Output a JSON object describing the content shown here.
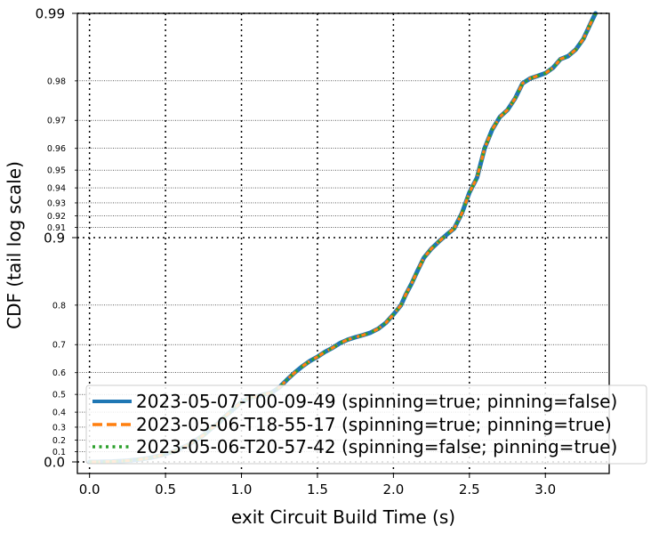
{
  "chart_data": {
    "type": "line",
    "title": "",
    "xlabel": "exit Circuit Build Time (s)",
    "ylabel": "CDF (tail log scale)",
    "xlim": [
      -0.08,
      3.42
    ],
    "x_ticks": [
      {
        "value": 0.0,
        "label": "0.0"
      },
      {
        "value": 0.5,
        "label": "0.5"
      },
      {
        "value": 1.0,
        "label": "1.0"
      },
      {
        "value": 1.5,
        "label": "1.5"
      },
      {
        "value": 2.0,
        "label": "2.0"
      },
      {
        "value": 2.5,
        "label": "2.5"
      },
      {
        "value": 3.0,
        "label": "3.0"
      }
    ],
    "y_scale": "tail-log",
    "y_major_ticks": [
      {
        "value": 0.0,
        "label": "0.0"
      },
      {
        "value": 0.9,
        "label": "0.9"
      },
      {
        "value": 0.99,
        "label": "0.99"
      }
    ],
    "y_minor_ticks": [
      {
        "value": 0.1,
        "label": "0.1"
      },
      {
        "value": 0.2,
        "label": "0.2"
      },
      {
        "value": 0.3,
        "label": "0.3"
      },
      {
        "value": 0.4,
        "label": "0.4"
      },
      {
        "value": 0.5,
        "label": "0.5"
      },
      {
        "value": 0.6,
        "label": "0.6"
      },
      {
        "value": 0.7,
        "label": "0.7"
      },
      {
        "value": 0.8,
        "label": "0.8"
      },
      {
        "value": 0.91,
        "label": "0.91"
      },
      {
        "value": 0.92,
        "label": "0.92"
      },
      {
        "value": 0.93,
        "label": "0.93"
      },
      {
        "value": 0.94,
        "label": "0.94"
      },
      {
        "value": 0.95,
        "label": "0.95"
      },
      {
        "value": 0.96,
        "label": "0.96"
      },
      {
        "value": 0.97,
        "label": "0.97"
      },
      {
        "value": 0.98,
        "label": "0.98"
      }
    ],
    "grid": true,
    "legend_position": "bottom-right",
    "series": [
      {
        "name": "2023-05-07-T00-09-49 (spinning=true; pinning=false)",
        "color": "#1f77b4",
        "style": "solid",
        "x": [
          0.0,
          0.05,
          0.1,
          0.15,
          0.2,
          0.25,
          0.3,
          0.35,
          0.4,
          0.45,
          0.5,
          0.55,
          0.6,
          0.65,
          0.7,
          0.75,
          0.8,
          0.85,
          0.9,
          0.95,
          1.0,
          1.05,
          1.1,
          1.15,
          1.2,
          1.25,
          1.3,
          1.35,
          1.4,
          1.45,
          1.5,
          1.55,
          1.6,
          1.65,
          1.7,
          1.75,
          1.8,
          1.85,
          1.9,
          1.95,
          2.0,
          2.05,
          2.08,
          2.12,
          2.16,
          2.2,
          2.25,
          2.3,
          2.35,
          2.4,
          2.45,
          2.5,
          2.55,
          2.6,
          2.65,
          2.7,
          2.75,
          2.8,
          2.85,
          2.9,
          2.95,
          3.0,
          3.05,
          3.1,
          3.15,
          3.2,
          3.25,
          3.3,
          3.33
        ],
        "y": [
          0.0,
          0.0,
          0.002,
          0.004,
          0.008,
          0.013,
          0.02,
          0.03,
          0.042,
          0.058,
          0.078,
          0.1,
          0.13,
          0.16,
          0.2,
          0.24,
          0.29,
          0.33,
          0.38,
          0.42,
          0.46,
          0.48,
          0.49,
          0.5,
          0.51,
          0.535,
          0.57,
          0.6,
          0.625,
          0.645,
          0.66,
          0.677,
          0.69,
          0.705,
          0.715,
          0.722,
          0.728,
          0.735,
          0.745,
          0.76,
          0.78,
          0.8,
          0.82,
          0.84,
          0.86,
          0.877,
          0.888,
          0.896,
          0.903,
          0.909,
          0.922,
          0.937,
          0.946,
          0.96,
          0.967,
          0.971,
          0.973,
          0.976,
          0.9795,
          0.9805,
          0.981,
          0.9815,
          0.9825,
          0.984,
          0.9845,
          0.9855,
          0.987,
          0.989,
          0.99
        ]
      },
      {
        "name": "2023-05-06-T18-55-17 (spinning=true; pinning=true)",
        "color": "#ff7f0e",
        "style": "dashed",
        "x": [
          0.0,
          0.05,
          0.1,
          0.15,
          0.2,
          0.25,
          0.3,
          0.35,
          0.4,
          0.45,
          0.5,
          0.55,
          0.6,
          0.65,
          0.7,
          0.75,
          0.8,
          0.85,
          0.9,
          0.95,
          1.0,
          1.05,
          1.1,
          1.15,
          1.2,
          1.25,
          1.3,
          1.35,
          1.4,
          1.45,
          1.5,
          1.55,
          1.6,
          1.65,
          1.7,
          1.75,
          1.8,
          1.85,
          1.9,
          1.95,
          2.0,
          2.05,
          2.08,
          2.12,
          2.16,
          2.2,
          2.25,
          2.3,
          2.35,
          2.4,
          2.45,
          2.5,
          2.55,
          2.6,
          2.65,
          2.7,
          2.75,
          2.8,
          2.85,
          2.9,
          2.95,
          3.0,
          3.05,
          3.1,
          3.15,
          3.2,
          3.25,
          3.3,
          3.33
        ],
        "y": [
          0.0,
          0.0,
          0.002,
          0.004,
          0.008,
          0.013,
          0.02,
          0.03,
          0.042,
          0.058,
          0.078,
          0.1,
          0.13,
          0.16,
          0.2,
          0.24,
          0.29,
          0.33,
          0.38,
          0.42,
          0.46,
          0.48,
          0.49,
          0.5,
          0.51,
          0.535,
          0.57,
          0.6,
          0.625,
          0.645,
          0.66,
          0.677,
          0.69,
          0.705,
          0.715,
          0.722,
          0.728,
          0.735,
          0.745,
          0.76,
          0.78,
          0.8,
          0.82,
          0.84,
          0.86,
          0.877,
          0.888,
          0.896,
          0.903,
          0.909,
          0.922,
          0.937,
          0.946,
          0.96,
          0.967,
          0.971,
          0.973,
          0.976,
          0.9795,
          0.9805,
          0.981,
          0.9815,
          0.9825,
          0.984,
          0.9845,
          0.9855,
          0.987,
          0.989,
          0.99
        ]
      },
      {
        "name": "2023-05-06-T20-57-42 (spinning=false; pinning=true)",
        "color": "#2ca02c",
        "style": "dotted",
        "x": [
          0.0,
          0.05,
          0.1,
          0.15,
          0.2,
          0.25,
          0.3,
          0.35,
          0.4,
          0.45,
          0.5,
          0.55,
          0.6,
          0.65,
          0.7,
          0.75,
          0.8,
          0.85,
          0.9,
          0.95,
          1.0,
          1.05,
          1.1,
          1.15,
          1.2,
          1.25,
          1.3,
          1.35,
          1.4,
          1.45,
          1.5,
          1.55,
          1.6,
          1.65,
          1.7,
          1.75,
          1.8,
          1.85,
          1.9,
          1.95,
          2.0,
          2.05,
          2.08,
          2.12,
          2.16,
          2.2,
          2.25,
          2.3,
          2.35,
          2.4,
          2.45,
          2.5,
          2.55,
          2.6,
          2.65,
          2.7,
          2.75,
          2.8,
          2.85,
          2.9,
          2.95,
          3.0,
          3.05,
          3.1,
          3.15,
          3.2,
          3.25,
          3.3,
          3.33
        ],
        "y": [
          0.0,
          0.0,
          0.002,
          0.004,
          0.008,
          0.013,
          0.02,
          0.03,
          0.042,
          0.058,
          0.078,
          0.1,
          0.13,
          0.16,
          0.2,
          0.24,
          0.29,
          0.33,
          0.38,
          0.42,
          0.46,
          0.48,
          0.49,
          0.5,
          0.51,
          0.535,
          0.57,
          0.6,
          0.625,
          0.645,
          0.66,
          0.677,
          0.69,
          0.705,
          0.715,
          0.722,
          0.728,
          0.735,
          0.745,
          0.76,
          0.78,
          0.8,
          0.82,
          0.84,
          0.86,
          0.877,
          0.888,
          0.896,
          0.903,
          0.909,
          0.922,
          0.937,
          0.946,
          0.96,
          0.967,
          0.971,
          0.973,
          0.976,
          0.9795,
          0.9805,
          0.981,
          0.9815,
          0.9825,
          0.984,
          0.9845,
          0.9855,
          0.987,
          0.989,
          0.99
        ]
      }
    ]
  }
}
